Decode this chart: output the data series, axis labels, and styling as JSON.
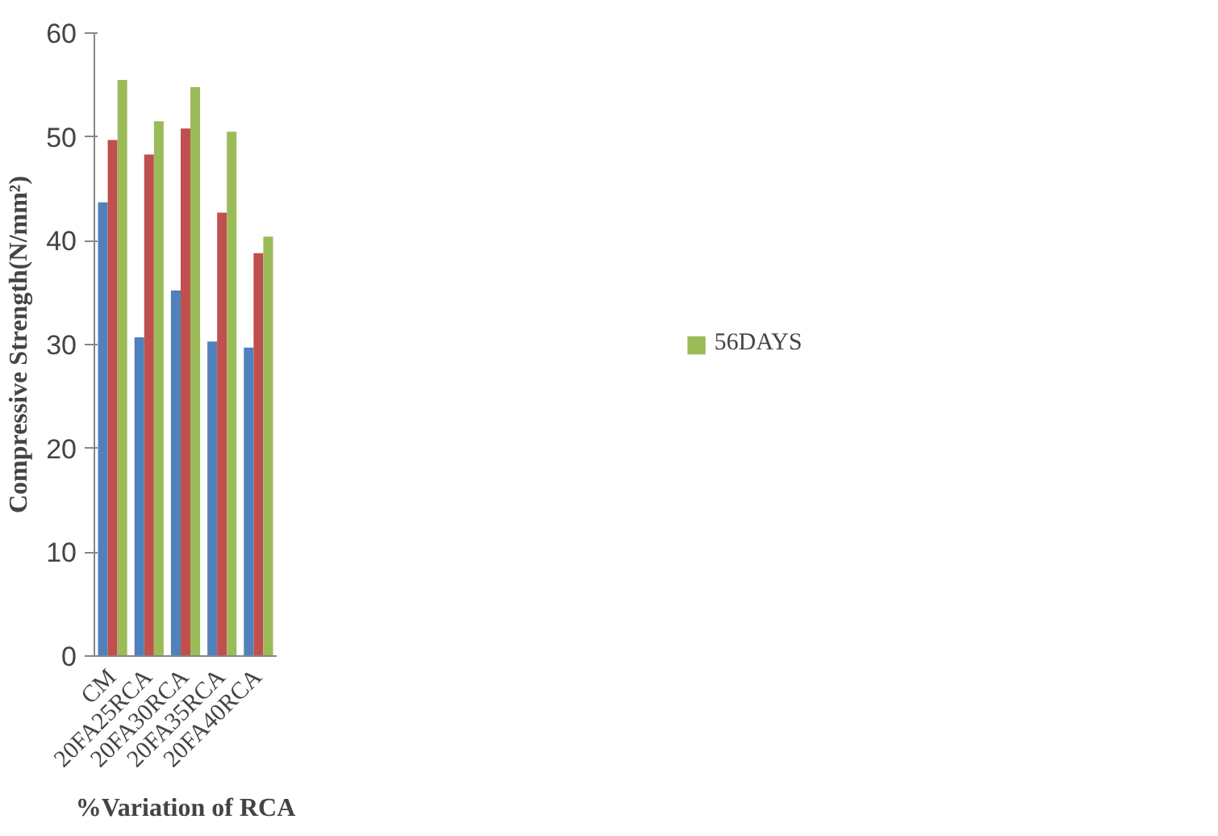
{
  "chart_data": {
    "type": "bar",
    "xlabel": "%Variation of RCA",
    "ylabel": "Compressive Strength(N/mm²)",
    "categories": [
      "CM",
      "20FA25RCA",
      "20FA30RCA",
      "20FA35RCA",
      "20FA40RCA"
    ],
    "series": [
      {
        "color": "#4f81bd",
        "values": [
          43.7,
          30.7,
          35.2,
          30.3,
          29.7
        ]
      },
      {
        "color": "#c0504d",
        "values": [
          49.7,
          48.3,
          50.8,
          42.7,
          38.8
        ]
      },
      {
        "name": "56DAYS",
        "color": "#9bbb59",
        "values": [
          55.5,
          51.5,
          54.8,
          50.5,
          40.4
        ]
      }
    ],
    "ylim": [
      0,
      60
    ],
    "yticks": [
      0,
      10,
      20,
      30,
      40,
      50,
      60
    ],
    "grid": false,
    "legend": "right"
  }
}
